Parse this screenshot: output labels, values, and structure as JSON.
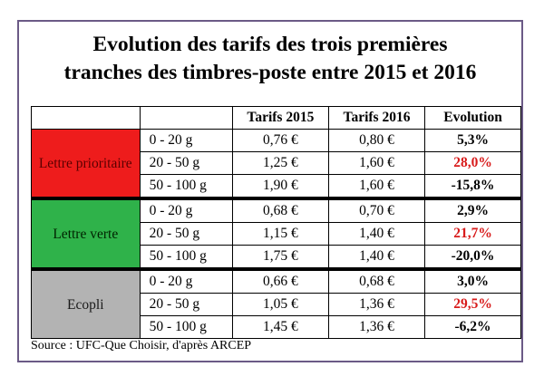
{
  "title": {
    "line1": "Evolution des tarifs des trois premières",
    "line2": "tranches des timbres-poste entre 2015 et 2016"
  },
  "headers": {
    "tarifs_2015": "Tarifs 2015",
    "tarifs_2016": "Tarifs 2016",
    "evolution": "Evolution"
  },
  "groups": [
    {
      "label": "Lettre prioritaire",
      "color": "#ee1c1c",
      "rows": [
        {
          "range": "0 - 20 g",
          "p2015": "0,76 €",
          "p2016": "0,80 €",
          "evolution": "5,3%",
          "highlight": false
        },
        {
          "range": "20 - 50 g",
          "p2015": "1,25 €",
          "p2016": "1,60 €",
          "evolution": "28,0%",
          "highlight": true
        },
        {
          "range": "50 - 100 g",
          "p2015": "1,90 €",
          "p2016": "1,60 €",
          "evolution": "-15,8%",
          "highlight": false
        }
      ]
    },
    {
      "label": "Lettre verte",
      "color": "#2fb24a",
      "rows": [
        {
          "range": "0 - 20 g",
          "p2015": "0,68 €",
          "p2016": "0,70 €",
          "evolution": "2,9%",
          "highlight": false
        },
        {
          "range": "20 - 50 g",
          "p2015": "1,15 €",
          "p2016": "1,40 €",
          "evolution": "21,7%",
          "highlight": true
        },
        {
          "range": "50 - 100 g",
          "p2015": "1,75 €",
          "p2016": "1,40 €",
          "evolution": "-20,0%",
          "highlight": false
        }
      ]
    },
    {
      "label": "Ecopli",
      "color": "#b3b3b3",
      "rows": [
        {
          "range": "0 - 20 g",
          "p2015": "0,66 €",
          "p2016": "0,68 €",
          "evolution": "3,0%",
          "highlight": false
        },
        {
          "range": "20 - 50 g",
          "p2015": "1,05 €",
          "p2016": "1,36 €",
          "evolution": "29,5%",
          "highlight": true
        },
        {
          "range": "50 - 100 g",
          "p2015": "1,45 €",
          "p2016": "1,36 €",
          "evolution": "-6,2%",
          "highlight": false
        }
      ]
    }
  ],
  "source": "Source : UFC-Que Choisir, d'après ARCEP",
  "colors": {
    "frame": "#6b5a86",
    "highlight_text": "#d81b1b"
  }
}
